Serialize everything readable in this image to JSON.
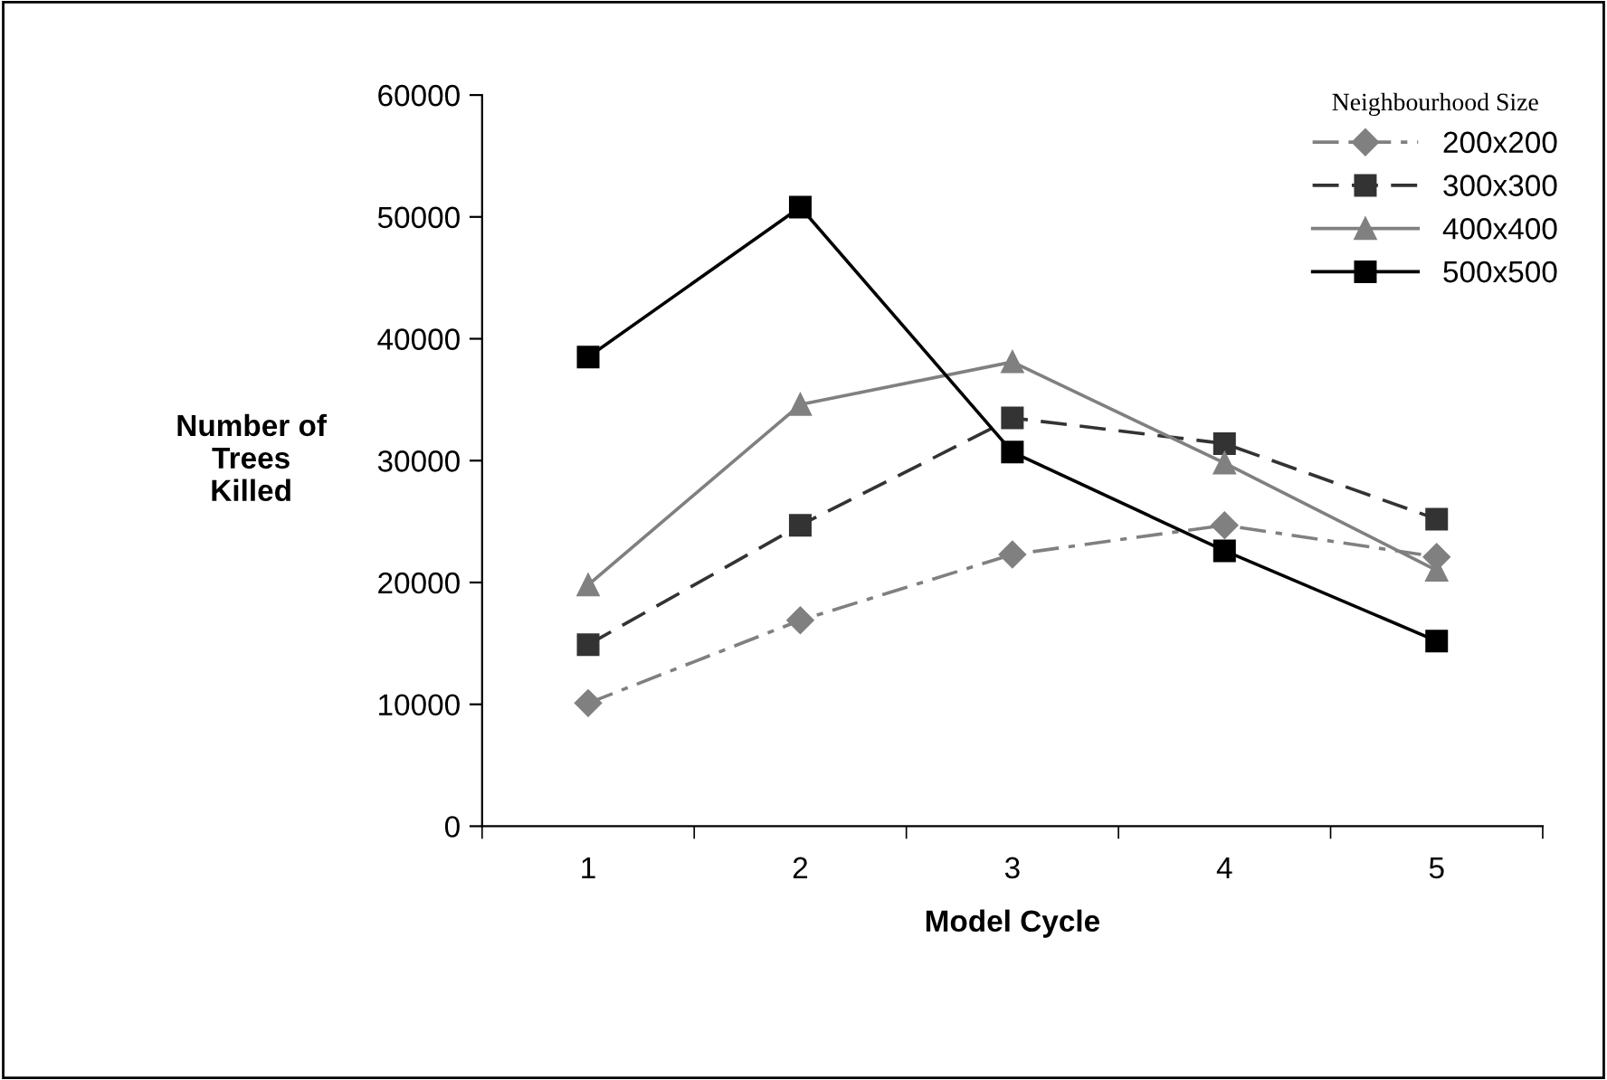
{
  "chart_data": {
    "type": "line",
    "xlabel": "Model Cycle",
    "ylabel": "Number of\nTrees\nKilled",
    "legend_title": "Neighbourhood Size",
    "categories": [
      "1",
      "2",
      "3",
      "4",
      "5"
    ],
    "ylim": [
      0,
      60000
    ],
    "yticks": [
      0,
      10000,
      20000,
      30000,
      40000,
      50000,
      60000
    ],
    "grid": false,
    "legend": "top right",
    "series": [
      {
        "name": "200x200",
        "color": "#808080",
        "marker": "diamond",
        "line_style": "dashdot",
        "values": [
          10100,
          16900,
          22300,
          24700,
          22100
        ]
      },
      {
        "name": "300x300",
        "color": "#333333",
        "marker": "square",
        "line_style": "dashed",
        "values": [
          14900,
          24700,
          33500,
          31400,
          25200
        ]
      },
      {
        "name": "400x400",
        "color": "#808080",
        "marker": "triangle",
        "line_style": "solid",
        "values": [
          19800,
          34600,
          38100,
          29800,
          21000
        ]
      },
      {
        "name": "500x500",
        "color": "#000000",
        "marker": "square",
        "line_style": "solid",
        "values": [
          38500,
          50800,
          30700,
          22600,
          15200
        ]
      }
    ]
  }
}
